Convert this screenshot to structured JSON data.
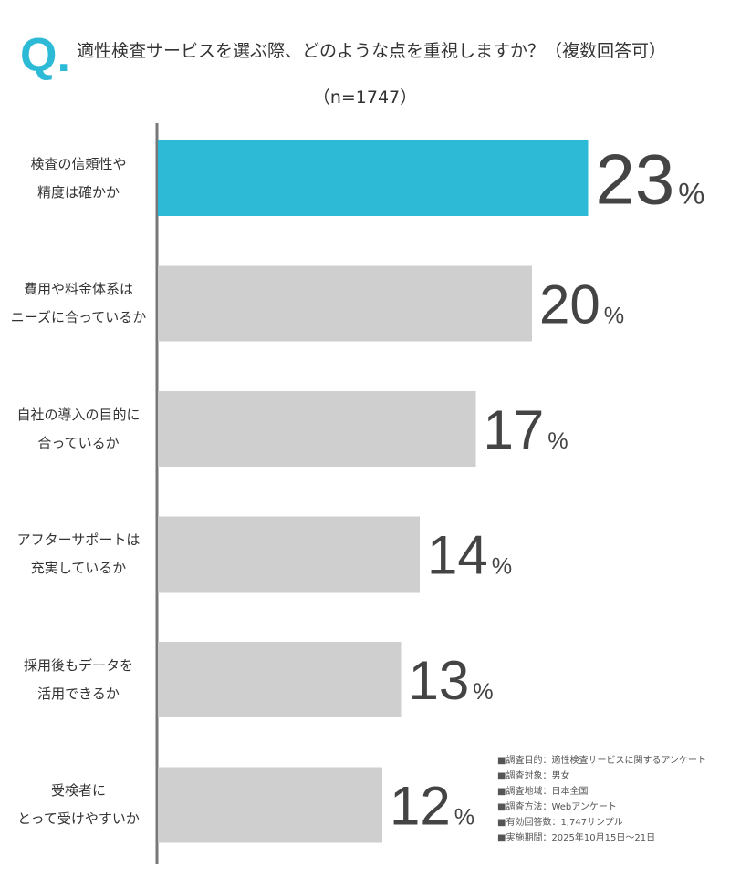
{
  "chart_data": {
    "type": "bar",
    "orientation": "horizontal",
    "title_mark": "Q.",
    "title": "適性検査サービスを選ぶ際、どのような点を重視しますか？（複数回答可）",
    "subtitle": "（n=1747）",
    "categories": [
      "検査の信頼性や\n精度は確かか",
      "費用や料金体系は\nニーズに合っているか",
      "自社の導入の目的に\n合っているか",
      "アフターサポートは\n充実しているか",
      "採用後もデータを\n活用できるか",
      "受検者に\nとって受けやすいか"
    ],
    "values": [
      23,
      20,
      17,
      14,
      13,
      12
    ],
    "value_labels": [
      "23%",
      "20%",
      "17%",
      "14%",
      "13%",
      "12%"
    ],
    "colors": [
      "#2cbad6",
      "#cfcfcf",
      "#cfcfcf",
      "#cfcfcf",
      "#cfcfcf",
      "#cfcfcf"
    ],
    "notes": [
      "■調査目的：適性検査サービスに関するアンケート",
      "■調査対象：男女",
      "■調査地域：日本全国",
      "■調査方法：Webアンケート",
      "■有効回答数：1,747サンプル",
      "■実施期間：2025年10月15日～21日"
    ]
  }
}
